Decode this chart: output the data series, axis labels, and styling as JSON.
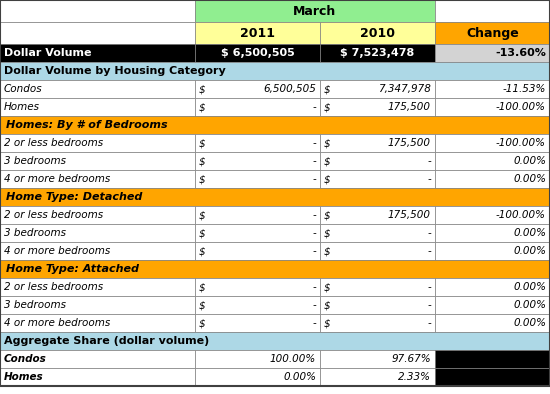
{
  "title_row": "March",
  "header_row": [
    "",
    "2011",
    "2010",
    "Change"
  ],
  "rows": [
    {
      "label": "Dollar Volume",
      "v2011": "$ 6,500,505",
      "v2010": "$ 7,523,478",
      "change": "-13.60%",
      "type": "dollar_volume"
    },
    {
      "label": "Dollar Volume by Housing Category",
      "v2011": "",
      "v2010": "",
      "change": "",
      "type": "section_header"
    },
    {
      "label": "Condos",
      "v2011": "$    6,500,505",
      "v2010": "$    7,347,978",
      "change": "-11.53%",
      "type": "data_italic"
    },
    {
      "label": "Homes",
      "v2011": "$    -",
      "v2010": "$    175,500",
      "change": "-100.00%",
      "type": "data_italic"
    },
    {
      "label": "Homes: By # of Bedrooms",
      "v2011": "",
      "v2010": "",
      "change": "",
      "type": "subsection_header"
    },
    {
      "label": "2 or less bedrooms",
      "v2011": "$    -",
      "v2010": "$    175,500",
      "change": "-100.00%",
      "type": "data_italic"
    },
    {
      "label": "3 bedrooms",
      "v2011": "$    -",
      "v2010": "$    -",
      "change": "0.00%",
      "type": "data_italic"
    },
    {
      "label": "4 or more bedrooms",
      "v2011": "$    -",
      "v2010": "$    -",
      "change": "0.00%",
      "type": "data_italic"
    },
    {
      "label": "Home Type: Detached",
      "v2011": "",
      "v2010": "",
      "change": "",
      "type": "subsection_header"
    },
    {
      "label": "2 or less bedrooms",
      "v2011": "$    -",
      "v2010": "$    175,500",
      "change": "-100.00%",
      "type": "data_italic"
    },
    {
      "label": "3 bedrooms",
      "v2011": "$    -",
      "v2010": "$    -",
      "change": "0.00%",
      "type": "data_italic"
    },
    {
      "label": "4 or more bedrooms",
      "v2011": "$    -",
      "v2010": "$    -",
      "change": "0.00%",
      "type": "data_italic"
    },
    {
      "label": "Home Type: Attached",
      "v2011": "",
      "v2010": "",
      "change": "",
      "type": "subsection_header"
    },
    {
      "label": "2 or less bedrooms",
      "v2011": "$    -",
      "v2010": "$    -",
      "change": "0.00%",
      "type": "data_italic"
    },
    {
      "label": "3 bedrooms",
      "v2011": "$    -",
      "v2010": "$    -",
      "change": "0.00%",
      "type": "data_italic"
    },
    {
      "label": "4 or more bedrooms",
      "v2011": "$    -",
      "v2010": "$    -",
      "change": "0.00%",
      "type": "data_italic"
    },
    {
      "label": "Aggregate Share (dollar volume)",
      "v2011": "",
      "v2010": "",
      "change": "",
      "type": "section_header"
    },
    {
      "label": "Condos",
      "v2011": "100.00%",
      "v2010": "97.67%",
      "change": "",
      "type": "aggregate_italic"
    },
    {
      "label": "Homes",
      "v2011": "0.00%",
      "v2010": "2.33%",
      "change": "",
      "type": "aggregate_italic"
    }
  ],
  "colors": {
    "march_header_bg": "#90EE90",
    "year_header_bg": "#FFFF99",
    "change_header_bg": "#FFA500",
    "dollar_volume_bg": "#000000",
    "dollar_volume_fg": "#FFFFFF",
    "section_header_bg": "#ADD8E6",
    "subsection_header_bg": "#FFA500",
    "data_row_bg": "#FFFFFF",
    "data_row_bg_alt": "#F5F5F5",
    "change_col_bg": "#D3D3D3",
    "aggregate_header_bg": "#ADD8E6",
    "aggregate_black_bg": "#000000",
    "border_color": "#808080"
  }
}
